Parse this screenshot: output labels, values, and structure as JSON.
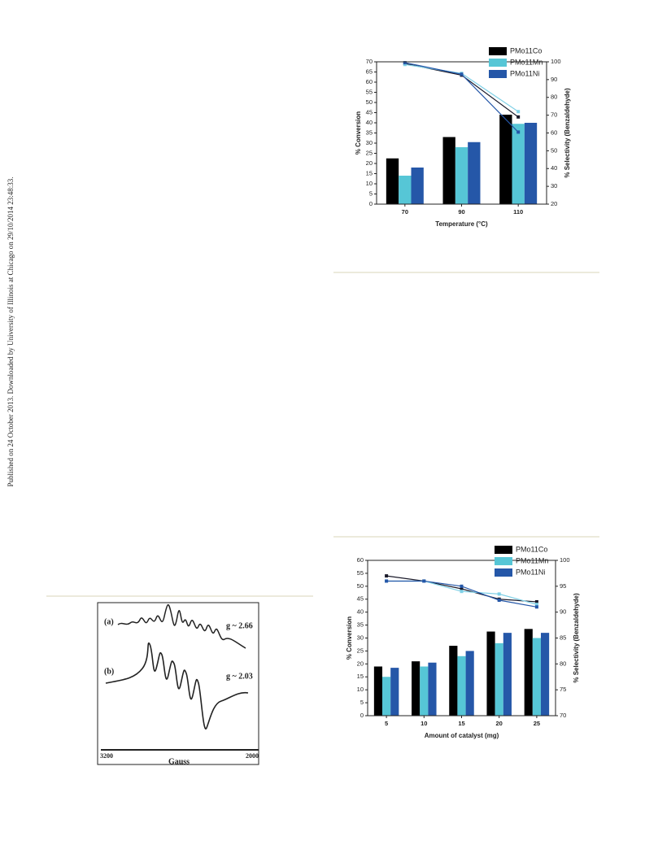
{
  "side_note": "Published on 24 October 2013. Downloaded by University of Illinois at Chicago on 29/10/2014 23:48:33.",
  "epr_figure": {
    "label_a": "(a)",
    "g_a": "g ~ 2.66",
    "label_b": "(b)",
    "g_b": "g ~ 2.03",
    "x_start": "3200",
    "x_label": "Gauss",
    "x_end": "2000"
  },
  "chart_data": [
    {
      "type": "bar-line",
      "xlabel": "Temperature (°C)",
      "ylabel": "% Conversion",
      "y2label": "% Selectivity (Benzaldehyde)",
      "categories": [
        "70",
        "90",
        "110"
      ],
      "ylim": [
        0,
        70
      ],
      "yticks": [
        0,
        5,
        10,
        15,
        20,
        25,
        30,
        35,
        40,
        45,
        50,
        55,
        60,
        65,
        70
      ],
      "y2lim": [
        20,
        100
      ],
      "y2ticks": [
        20,
        30,
        40,
        50,
        60,
        70,
        80,
        90,
        100
      ],
      "series": [
        {
          "name": "PMo11Co",
          "color": "#000000",
          "line_color": "#1a1a2a",
          "values": [
            22.5,
            33,
            44
          ],
          "selectivity": [
            99,
            92.5,
            69
          ]
        },
        {
          "name": "PMo11Mn",
          "color": "#56c6d6",
          "line_color": "#7fd0e6",
          "values": [
            14,
            28,
            39.5
          ],
          "selectivity": [
            98.5,
            93.5,
            72
          ]
        },
        {
          "name": "PMo11Ni",
          "color": "#2557a8",
          "line_color": "#2557a8",
          "values": [
            18,
            30.5,
            40
          ],
          "selectivity": [
            99.5,
            93,
            60.5
          ]
        }
      ]
    },
    {
      "type": "bar-line",
      "xlabel": "Amount of catalyst (mg)",
      "ylabel": "% Conversion",
      "y2label": "% Selectivity (Benzaldehyde)",
      "categories": [
        "5",
        "10",
        "15",
        "20",
        "25"
      ],
      "ylim": [
        0,
        60
      ],
      "yticks": [
        0,
        5,
        10,
        15,
        20,
        25,
        30,
        35,
        40,
        45,
        50,
        55,
        60
      ],
      "y2lim": [
        70,
        100
      ],
      "y2ticks": [
        70,
        75,
        80,
        85,
        90,
        95,
        100
      ],
      "series": [
        {
          "name": "PMo11Co",
          "color": "#000000",
          "line_color": "#1a1a2a",
          "values": [
            19,
            21,
            27,
            32.5,
            33.5
          ],
          "selectivity": [
            97,
            96,
            94.5,
            92.5,
            92
          ]
        },
        {
          "name": "PMo11Mn",
          "color": "#56c6d6",
          "line_color": "#7fd0e6",
          "values": [
            15,
            19,
            23,
            28,
            30
          ],
          "selectivity": [
            96,
            96,
            94,
            93.5,
            91.5
          ]
        },
        {
          "name": "PMo11Ni",
          "color": "#2557a8",
          "line_color": "#2557a8",
          "values": [
            18.5,
            20.5,
            25,
            32,
            32
          ],
          "selectivity": [
            96,
            96,
            95,
            92.3,
            91
          ]
        }
      ]
    }
  ]
}
